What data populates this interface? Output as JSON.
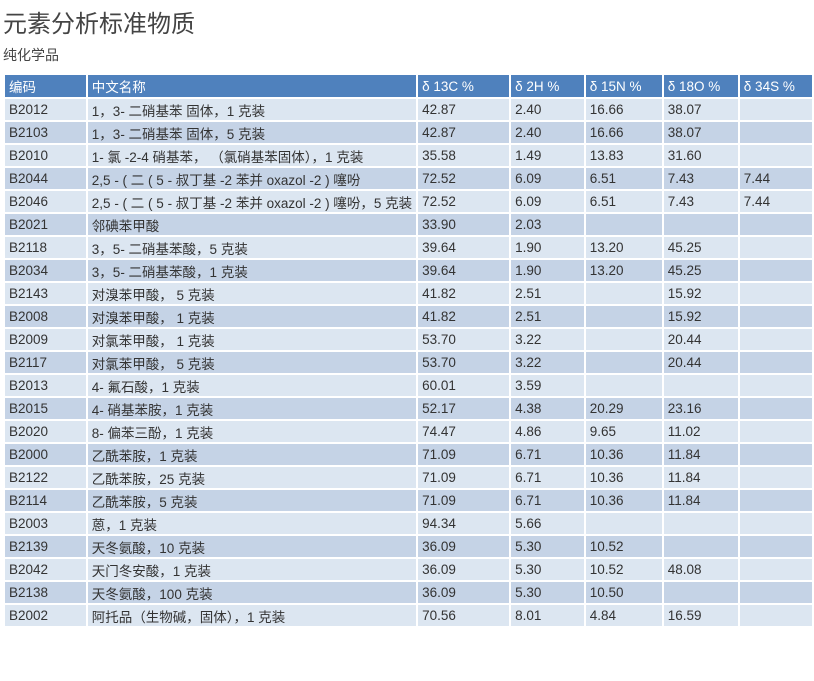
{
  "title": "元素分析标准物质",
  "subtitle": "纯化学品",
  "colors": {
    "header_bg": "#4f81bd",
    "row_light": "#dce6f1",
    "row_dark": "#c5d3e6"
  },
  "table": {
    "headers": [
      "编码",
      "中文名称",
      "δ 13C %",
      "δ 2H %",
      "δ 15N %",
      "δ 18O %",
      "δ 34S %"
    ],
    "rows": [
      [
        "B2012",
        "1，3- 二硝基苯 固体，1 克装",
        "42.87",
        "2.40",
        "16.66",
        "38.07",
        ""
      ],
      [
        "B2103",
        "1，3- 二硝基苯 固体，5 克装",
        "42.87",
        "2.40",
        "16.66",
        "38.07",
        ""
      ],
      [
        "B2010",
        "1- 氯 -2-4 硝基苯，  （氯硝基苯固体），1 克装",
        "35.58",
        "1.49",
        "13.83",
        "31.60",
        ""
      ],
      [
        "B2044",
        "2,5 - ( 二 ( 5 - 叔丁基 -2 苯并 oxazol -2 ) 噻吩",
        "72.52",
        "6.09",
        "6.51",
        "7.43",
        "7.44"
      ],
      [
        "B2046",
        "2,5 - ( 二 ( 5 - 叔丁基 -2 苯并 oxazol -2 ) 噻吩，5 克装",
        "72.52",
        "6.09",
        "6.51",
        "7.43",
        "7.44"
      ],
      [
        "B2021",
        "邻碘苯甲酸",
        "33.90",
        "2.03",
        "",
        "",
        ""
      ],
      [
        "B2118",
        "3，5- 二硝基苯酸，5 克装",
        "39.64",
        "1.90",
        "13.20",
        "45.25",
        ""
      ],
      [
        "B2034",
        "3，5- 二硝基苯酸，1 克装",
        "39.64",
        "1.90",
        "13.20",
        "45.25",
        ""
      ],
      [
        "B2143",
        "对溴苯甲酸， 5 克装",
        "41.82",
        "2.51",
        "",
        "15.92",
        ""
      ],
      [
        "B2008",
        "对溴苯甲酸， 1 克装",
        "41.82",
        "2.51",
        "",
        "15.92",
        ""
      ],
      [
        "B2009",
        "对氯苯甲酸， 1 克装",
        "53.70",
        "3.22",
        "",
        "20.44",
        ""
      ],
      [
        "B2117",
        "对氯苯甲酸， 5 克装",
        "53.70",
        "3.22",
        "",
        "20.44",
        ""
      ],
      [
        "B2013",
        "4- 氟石酸，1 克装",
        "60.01",
        "3.59",
        "",
        "",
        ""
      ],
      [
        "B2015",
        "4- 硝基苯胺，1 克装",
        "52.17",
        "4.38",
        "20.29",
        "23.16",
        ""
      ],
      [
        "B2020",
        "8- 偏苯三酚，1 克装",
        "74.47",
        "4.86",
        "9.65",
        "11.02",
        ""
      ],
      [
        "B2000",
        "乙酰苯胺，1 克装",
        "71.09",
        "6.71",
        "10.36",
        "11.84",
        ""
      ],
      [
        "B2122",
        "乙酰苯胺，25 克装",
        "71.09",
        "6.71",
        "10.36",
        "11.84",
        ""
      ],
      [
        "B2114",
        "乙酰苯胺，5 克装",
        "71.09",
        "6.71",
        "10.36",
        "11.84",
        ""
      ],
      [
        "B2003",
        "蒽，1 克装",
        "94.34",
        "5.66",
        "",
        "",
        ""
      ],
      [
        "B2139",
        "天冬氨酸，10 克装",
        "36.09",
        "5.30",
        "10.52",
        "",
        ""
      ],
      [
        "B2042",
        "天门冬安酸，1 克装",
        "36.09",
        "5.30",
        "10.52",
        "48.08",
        ""
      ],
      [
        "B2138",
        "天冬氨酸，100 克装",
        "36.09",
        "5.30",
        "10.50",
        "",
        ""
      ],
      [
        "B2002",
        "阿托品（生物碱，固体），1 克装",
        "70.56",
        "8.01",
        "4.84",
        "16.59",
        ""
      ]
    ]
  }
}
